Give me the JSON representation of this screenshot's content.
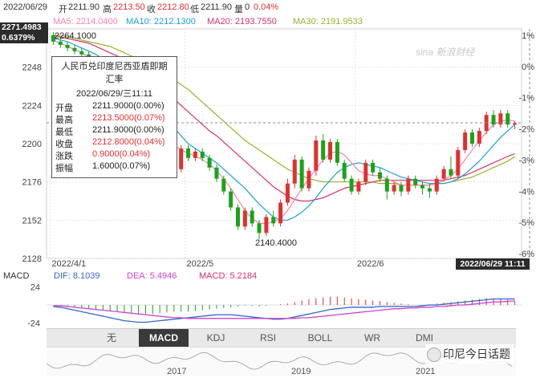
{
  "header": {
    "date": "2022/06/29",
    "open_label": "开",
    "open": "2211.90",
    "high_label": "高",
    "high": "2213.50",
    "close_label": "收",
    "close": "2212.80",
    "low_label": "低",
    "low": "2211.90",
    "vol_label": "量",
    "vol": "0",
    "change_pct": "0.04%"
  },
  "ma_bar": {
    "ma5": "MA5: 2214.0400",
    "ma10": "MA10: 2212.1300",
    "ma20": "MA20: 2193.7550",
    "ma30": "MA30: 2191.9533"
  },
  "price_tag": {
    "price": "2271.4983",
    "pct": "0.6379%"
  },
  "tooltip": {
    "title_line1": "人民币兑印度尼西亚盾即期",
    "title_line2": "汇率",
    "datetime": "2022/06/29/三11:11",
    "rows": [
      {
        "label": "开盘",
        "value": "2211.9000(0.00%)",
        "color": "#222222"
      },
      {
        "label": "最高",
        "value": "2213.5000(0.07%)",
        "color": "#e03030"
      },
      {
        "label": "最低",
        "value": "2211.9000(0.00%)",
        "color": "#222222"
      },
      {
        "label": "收盘",
        "value": "2212.8000(0.04%)",
        "color": "#e03030"
      },
      {
        "label": "涨跌",
        "value": "0.9000(0.04%)",
        "color": "#e03030"
      },
      {
        "label": "振幅",
        "value": "1.6000(0.07%)",
        "color": "#222222"
      }
    ]
  },
  "watermark": "sina 新浪财经",
  "cursor_date": "2022/06/29 11:11",
  "macd_bar": {
    "title": "MACD",
    "dif": "DIF: 8.1039",
    "dea": "DEA: 5.4946",
    "macd": "MACD: 5.2184"
  },
  "tabs": [
    "无",
    "MACD",
    "KDJ",
    "RSI",
    "BOLL",
    "WR",
    "DMI"
  ],
  "active_tab": "MACD",
  "arrows": {
    "left": "▲",
    "right": "▼"
  },
  "overview_years": [
    "2017",
    "2019",
    "2021"
  ],
  "brand": "印尼今日话题",
  "colors": {
    "up": "#e03030",
    "down": "#1aa31a",
    "ma5": "#ff7fb0",
    "ma10": "#1aa0d8",
    "ma20": "#d8306a",
    "ma30": "#98b228",
    "dif": "#3366cc",
    "dea": "#cc44cc"
  },
  "chart_data": {
    "type": "candlestick",
    "ylim": [
      2128,
      2272
    ],
    "y_ticks": [
      "2248",
      "2224",
      "2200",
      "2176",
      "2152",
      "2128"
    ],
    "right_pct_ticks": [
      "1%",
      "0%",
      "-1%",
      "-2%",
      "-3%",
      "-4%",
      "-5%",
      "-6%"
    ],
    "x_ticks": [
      "2022/4/1",
      "2022/5",
      "2022/6"
    ],
    "annotations": {
      "high_label": "2264.1000",
      "low_label": "2140.4000"
    },
    "candles": [
      [
        2268,
        2270,
        2262,
        2264
      ],
      [
        2264,
        2266,
        2260,
        2262
      ],
      [
        2262,
        2264,
        2258,
        2260
      ],
      [
        2260,
        2262,
        2256,
        2258
      ],
      [
        2258,
        2260,
        2254,
        2256
      ],
      [
        2256,
        2258,
        2250,
        2252
      ],
      [
        2252,
        2254,
        2246,
        2248
      ],
      [
        2248,
        2252,
        2242,
        2245
      ],
      [
        2245,
        2248,
        2238,
        2240
      ],
      [
        2240,
        2242,
        2234,
        2236
      ],
      [
        2236,
        2238,
        2228,
        2230
      ],
      [
        2230,
        2233,
        2222,
        2225
      ],
      [
        2225,
        2228,
        2216,
        2218
      ],
      [
        2218,
        2221,
        2210,
        2212
      ],
      [
        2212,
        2215,
        2203,
        2205
      ],
      [
        2205,
        2208,
        2197,
        2199
      ],
      [
        2199,
        2202,
        2195,
        2198
      ],
      [
        2198,
        2200,
        2182,
        2184
      ],
      [
        2184,
        2199,
        2182,
        2197
      ],
      [
        2197,
        2199,
        2189,
        2191
      ],
      [
        2191,
        2197,
        2189,
        2195
      ],
      [
        2195,
        2197,
        2189,
        2191
      ],
      [
        2191,
        2193,
        2183,
        2185
      ],
      [
        2185,
        2187,
        2176,
        2178
      ],
      [
        2178,
        2180,
        2168,
        2170
      ],
      [
        2170,
        2172,
        2158,
        2160
      ],
      [
        2160,
        2162,
        2146,
        2148
      ],
      [
        2148,
        2160,
        2146,
        2158
      ],
      [
        2158,
        2160,
        2148,
        2150
      ],
      [
        2150,
        2152,
        2140,
        2144
      ],
      [
        2144,
        2156,
        2142,
        2154
      ],
      [
        2154,
        2158,
        2148,
        2150
      ],
      [
        2150,
        2165,
        2148,
        2163
      ],
      [
        2163,
        2178,
        2161,
        2175
      ],
      [
        2175,
        2193,
        2172,
        2190
      ],
      [
        2190,
        2192,
        2170,
        2172
      ],
      [
        2172,
        2185,
        2170,
        2183
      ],
      [
        2183,
        2205,
        2180,
        2202
      ],
      [
        2202,
        2206,
        2188,
        2190
      ],
      [
        2190,
        2203,
        2188,
        2201
      ],
      [
        2201,
        2203,
        2186,
        2188
      ],
      [
        2188,
        2190,
        2176,
        2178
      ],
      [
        2178,
        2180,
        2168,
        2170
      ],
      [
        2170,
        2178,
        2168,
        2176
      ],
      [
        2176,
        2190,
        2174,
        2188
      ],
      [
        2188,
        2190,
        2180,
        2182
      ],
      [
        2182,
        2185,
        2176,
        2178
      ],
      [
        2178,
        2180,
        2165,
        2170
      ],
      [
        2170,
        2176,
        2168,
        2174
      ],
      [
        2174,
        2176,
        2167,
        2170
      ],
      [
        2170,
        2180,
        2168,
        2178
      ],
      [
        2178,
        2180,
        2172,
        2174
      ],
      [
        2174,
        2176,
        2168,
        2172
      ],
      [
        2172,
        2175,
        2166,
        2170
      ],
      [
        2170,
        2180,
        2168,
        2178
      ],
      [
        2178,
        2186,
        2176,
        2184
      ],
      [
        2184,
        2192,
        2178,
        2180
      ],
      [
        2180,
        2198,
        2178,
        2196
      ],
      [
        2196,
        2209,
        2194,
        2207
      ],
      [
        2207,
        2209,
        2198,
        2200
      ],
      [
        2200,
        2210,
        2198,
        2208
      ],
      [
        2208,
        2220,
        2206,
        2218
      ],
      [
        2218,
        2221,
        2210,
        2212
      ],
      [
        2212,
        2221,
        2210,
        2219
      ],
      [
        2219,
        2221,
        2210,
        2212
      ],
      [
        2212,
        2214,
        2209,
        2212.8
      ]
    ],
    "ma5": [
      2265,
      2263,
      2261,
      2259,
      2257,
      2254,
      2251,
      2248,
      2245,
      2241,
      2237,
      2232,
      2227,
      2221,
      2215,
      2209,
      2204,
      2199,
      2196,
      2194,
      2192,
      2190,
      2187,
      2183,
      2178,
      2172,
      2165,
      2158,
      2153,
      2150,
      2150,
      2151,
      2153,
      2158,
      2165,
      2172,
      2178,
      2184,
      2190,
      2194,
      2195,
      2193,
      2188,
      2183,
      2181,
      2180,
      2180,
      2178,
      2176,
      2174,
      2174,
      2174,
      2174,
      2174,
      2175,
      2177,
      2180,
      2184,
      2190,
      2196,
      2202,
      2207,
      2212,
      2214,
      2215,
      2214
    ],
    "ma10": [
      2266,
      2265,
      2264,
      2262,
      2260,
      2258,
      2256,
      2253,
      2250,
      2247,
      2244,
      2240,
      2236,
      2231,
      2226,
      2221,
      2215,
      2210,
      2205,
      2200,
      2197,
      2194,
      2191,
      2188,
      2184,
      2180,
      2176,
      2172,
      2167,
      2162,
      2158,
      2154,
      2152,
      2152,
      2154,
      2157,
      2161,
      2166,
      2172,
      2177,
      2182,
      2185,
      2187,
      2188,
      2187,
      2186,
      2185,
      2183,
      2181,
      2179,
      2178,
      2177,
      2176,
      2175,
      2175,
      2175,
      2176,
      2178,
      2181,
      2185,
      2189,
      2194,
      2199,
      2204,
      2208,
      2212
    ],
    "ma20": [
      2268,
      2267,
      2266,
      2265,
      2264,
      2263,
      2261,
      2259,
      2257,
      2255,
      2252,
      2249,
      2246,
      2243,
      2240,
      2236,
      2232,
      2228,
      2224,
      2220,
      2216,
      2212,
      2208,
      2205,
      2201,
      2197,
      2193,
      2189,
      2185,
      2181,
      2177,
      2173,
      2170,
      2167,
      2165,
      2164,
      2164,
      2165,
      2166,
      2168,
      2170,
      2172,
      2173,
      2174,
      2175,
      2176,
      2177,
      2177,
      2177,
      2177,
      2177,
      2177,
      2177,
      2177,
      2177,
      2177,
      2178,
      2179,
      2180,
      2182,
      2184,
      2186,
      2188,
      2190,
      2192,
      2193.7
    ],
    "ma30": [
      2268,
      2268,
      2267,
      2266,
      2265,
      2264,
      2263,
      2262,
      2261,
      2259,
      2257,
      2255,
      2253,
      2251,
      2249,
      2246,
      2243,
      2240,
      2237,
      2234,
      2230,
      2226,
      2222,
      2218,
      2214,
      2210,
      2206,
      2202,
      2199,
      2196,
      2193,
      2190,
      2187,
      2184,
      2182,
      2180,
      2178,
      2177,
      2176,
      2176,
      2176,
      2176,
      2176,
      2176,
      2176,
      2176,
      2175,
      2175,
      2175,
      2174,
      2174,
      2174,
      2174,
      2174,
      2175,
      2175,
      2176,
      2177,
      2178,
      2179,
      2181,
      2183,
      2185,
      2187,
      2189,
      2191.9
    ],
    "macd_ylim": [
      -30,
      30
    ],
    "macd_y_ticks": [
      "24",
      "-24"
    ],
    "macd_hist": [
      0,
      -1,
      -2,
      -3,
      -4,
      -5,
      -6,
      -7,
      -8,
      -9,
      -10,
      -11,
      -12,
      -12,
      -12,
      -11,
      -10,
      -9,
      -9,
      -9,
      -8,
      -7,
      -6,
      -5,
      -4,
      -3,
      -2,
      -1,
      -1,
      -2,
      -1,
      0,
      1,
      2,
      4,
      6,
      8,
      9,
      10,
      11,
      11,
      10,
      9,
      8,
      7,
      6,
      5,
      4,
      3,
      2,
      1,
      0,
      0,
      1,
      2,
      3,
      4,
      5,
      6,
      7,
      8,
      9,
      9,
      8,
      7,
      5.2
    ],
    "dif": [
      -2,
      -3,
      -5,
      -7,
      -9,
      -11,
      -13,
      -15,
      -17,
      -19,
      -21,
      -22,
      -23,
      -23,
      -22,
      -21,
      -20,
      -19,
      -18,
      -17,
      -16,
      -15,
      -14,
      -13,
      -13,
      -13,
      -14,
      -15,
      -16,
      -17,
      -18,
      -19,
      -19,
      -18,
      -16,
      -14,
      -12,
      -10,
      -8,
      -6,
      -5,
      -4,
      -3,
      -3,
      -3,
      -3,
      -2,
      -2,
      -2,
      -2,
      -2,
      -2,
      -1,
      0,
      0,
      1,
      2,
      3,
      4,
      5,
      6,
      7,
      8,
      8,
      8,
      8.1
    ],
    "dea": [
      -1,
      -1,
      -2,
      -3,
      -4,
      -5,
      -6,
      -7,
      -8,
      -9,
      -10,
      -11,
      -12,
      -13,
      -14,
      -15,
      -16,
      -17,
      -17,
      -18,
      -18,
      -18,
      -18,
      -18,
      -18,
      -18,
      -18,
      -18,
      -18,
      -18,
      -18,
      -18,
      -18,
      -18,
      -18,
      -17,
      -17,
      -16,
      -15,
      -14,
      -13,
      -12,
      -11,
      -10,
      -9,
      -8,
      -7,
      -6,
      -5,
      -5,
      -4,
      -4,
      -3,
      -3,
      -2,
      -2,
      -1,
      0,
      0,
      1,
      2,
      3,
      4,
      4,
      5,
      5.5
    ]
  }
}
